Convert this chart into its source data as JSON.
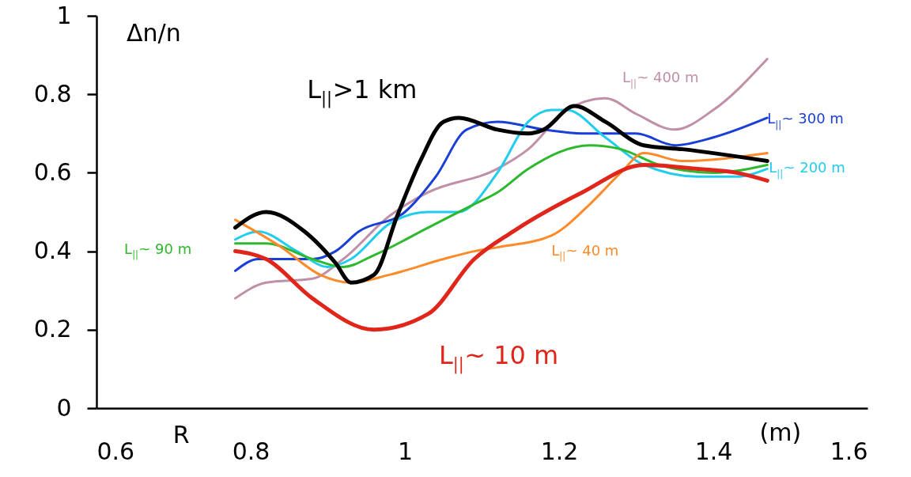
{
  "chart_data": {
    "type": "line",
    "xlabel": "R",
    "ylabel": "Δn/n",
    "annotations": [
      "(m)"
    ],
    "xlim": [
      0.6,
      1.6
    ],
    "xticks": [
      0.6,
      0.8,
      1,
      1.2,
      1.4,
      1.6
    ],
    "ylim": [
      0,
      1
    ],
    "yticks": [
      0,
      0.2,
      0.4,
      0.6,
      0.8,
      1
    ],
    "grid": false,
    "marker": "none",
    "line_style": "solid",
    "series": [
      {
        "name": "L$_{||}$~ 400 m",
        "color": "#c08fa8",
        "x": [
          0.78,
          0.82,
          0.88,
          0.92,
          0.98,
          1.03,
          1.12,
          1.16,
          1.21,
          1.26,
          1.3,
          1.35,
          1.4,
          1.47
        ],
        "values": [
          0.28,
          0.32,
          0.33,
          0.38,
          0.49,
          0.55,
          0.61,
          0.66,
          0.76,
          0.79,
          0.75,
          0.71,
          0.76,
          0.89
        ]
      },
      {
        "name": "L$_{||}$~ 300 m",
        "color": "#1a3fd6",
        "x": [
          0.78,
          0.81,
          0.88,
          0.91,
          0.94,
          1.0,
          1.04,
          1.08,
          1.12,
          1.18,
          1.23,
          1.3,
          1.35,
          1.4,
          1.47
        ],
        "values": [
          0.35,
          0.38,
          0.38,
          0.4,
          0.45,
          0.5,
          0.59,
          0.71,
          0.73,
          0.71,
          0.7,
          0.7,
          0.67,
          0.69,
          0.74
        ]
      },
      {
        "name": "L$_{||}$~ 200 m",
        "color": "#22ccee",
        "x": [
          0.78,
          0.81,
          0.86,
          0.9,
          0.93,
          0.98,
          1.03,
          1.07,
          1.12,
          1.16,
          1.19,
          1.21,
          1.26,
          1.31,
          1.38,
          1.43,
          1.47
        ],
        "values": [
          0.43,
          0.45,
          0.4,
          0.36,
          0.38,
          0.47,
          0.5,
          0.5,
          0.6,
          0.73,
          0.76,
          0.76,
          0.69,
          0.62,
          0.59,
          0.59,
          0.61
        ]
      },
      {
        "name": "L$_{||}$~ 90 m",
        "color": "#2db82d",
        "x": [
          0.78,
          0.82,
          0.88,
          0.92,
          0.96,
          1.03,
          1.06,
          1.09,
          1.12,
          1.16,
          1.24,
          1.28,
          1.33,
          1.4,
          1.47
        ],
        "values": [
          0.42,
          0.42,
          0.38,
          0.36,
          0.39,
          0.46,
          0.49,
          0.52,
          0.55,
          0.61,
          0.67,
          0.66,
          0.62,
          0.6,
          0.62
        ]
      },
      {
        "name": "L$_{||}$~ 40 m",
        "color": "#ff8a2a",
        "x": [
          0.78,
          0.84,
          0.89,
          0.93,
          0.98,
          1.05,
          1.09,
          1.12,
          1.19,
          1.24,
          1.28,
          1.31,
          1.36,
          1.47
        ],
        "values": [
          0.48,
          0.41,
          0.34,
          0.32,
          0.34,
          0.38,
          0.4,
          0.41,
          0.44,
          0.52,
          0.6,
          0.65,
          0.63,
          0.65
        ]
      },
      {
        "name": "L$_{||}$~ 10 m",
        "color": "#e0261a",
        "x": [
          0.78,
          0.82,
          0.88,
          0.96,
          1.03,
          1.09,
          1.14,
          1.23,
          1.31,
          1.38,
          1.43,
          1.47
        ],
        "values": [
          0.4,
          0.38,
          0.28,
          0.2,
          0.24,
          0.38,
          0.45,
          0.55,
          0.62,
          0.61,
          0.6,
          0.58
        ]
      },
      {
        "name": "L$_{||}$>1 km",
        "color": "#000000",
        "x": [
          0.78,
          0.82,
          0.87,
          0.91,
          0.93,
          0.96,
          0.99,
          1.02,
          1.05,
          1.07,
          1.12,
          1.16,
          1.18,
          1.22,
          1.26,
          1.31,
          1.36,
          1.47
        ],
        "values": [
          0.46,
          0.5,
          0.45,
          0.37,
          0.32,
          0.34,
          0.49,
          0.63,
          0.73,
          0.74,
          0.71,
          0.7,
          0.71,
          0.77,
          0.73,
          0.67,
          0.66,
          0.63
        ]
      }
    ]
  }
}
